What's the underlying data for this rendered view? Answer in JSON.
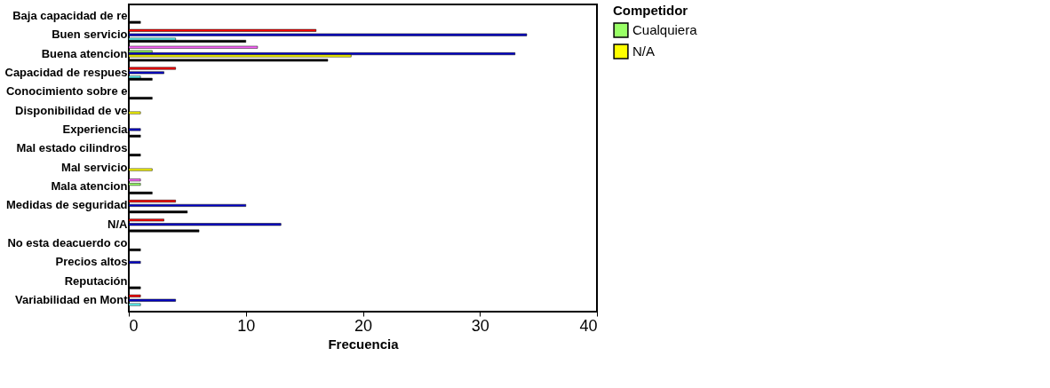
{
  "chart_data": {
    "type": "bar",
    "orientation": "horizontal",
    "xlabel": "Frecuencia",
    "legend_title": "Competidor",
    "legend": "right",
    "grid": false,
    "categories": [
      "Baja capacidad de re",
      "Buen servicio",
      "Buena atencion",
      "Capacidad de respues",
      "Conocimiento sobre e",
      "Disponibilidad de ve",
      "Experiencia",
      "Mal estado cilindros",
      "Mal servicio",
      "Mala atencion",
      "Medidas de seguridad",
      "N/A",
      "No esta deacuerdo co",
      "Precios altos",
      "Reputación",
      "Variabilidad en Mont"
    ],
    "xlim": [
      0,
      40
    ],
    "xticks": [
      0,
      10,
      20,
      30,
      40
    ],
    "series": [
      {
        "color": "#ff66ff",
        "values": [
          null,
          null,
          11,
          null,
          null,
          null,
          null,
          null,
          null,
          1,
          null,
          null,
          null,
          null,
          null,
          null
        ]
      },
      {
        "color": "#ff0000",
        "values": [
          null,
          16,
          null,
          4,
          null,
          null,
          null,
          null,
          null,
          null,
          4,
          3,
          null,
          null,
          null,
          1
        ]
      },
      {
        "name": "Cualquiera",
        "color": "#99ff66",
        "values": [
          null,
          null,
          2,
          null,
          null,
          null,
          null,
          null,
          null,
          1,
          null,
          null,
          null,
          null,
          null,
          null
        ]
      },
      {
        "color": "#0000cc",
        "values": [
          null,
          34,
          33,
          3,
          null,
          null,
          1,
          null,
          null,
          null,
          10,
          13,
          null,
          1,
          null,
          4
        ]
      },
      {
        "name": "N/A",
        "color": "#ffff00",
        "values": [
          null,
          null,
          19,
          null,
          null,
          1,
          null,
          null,
          2,
          null,
          null,
          null,
          null,
          null,
          null,
          null
        ]
      },
      {
        "color": "#66ffff",
        "values": [
          null,
          4,
          null,
          1,
          null,
          null,
          null,
          null,
          null,
          null,
          null,
          null,
          null,
          null,
          null,
          1
        ]
      },
      {
        "color": "#000000",
        "values": [
          1,
          10,
          17,
          2,
          2,
          null,
          1,
          1,
          null,
          2,
          5,
          6,
          1,
          null,
          1,
          null
        ]
      }
    ]
  }
}
